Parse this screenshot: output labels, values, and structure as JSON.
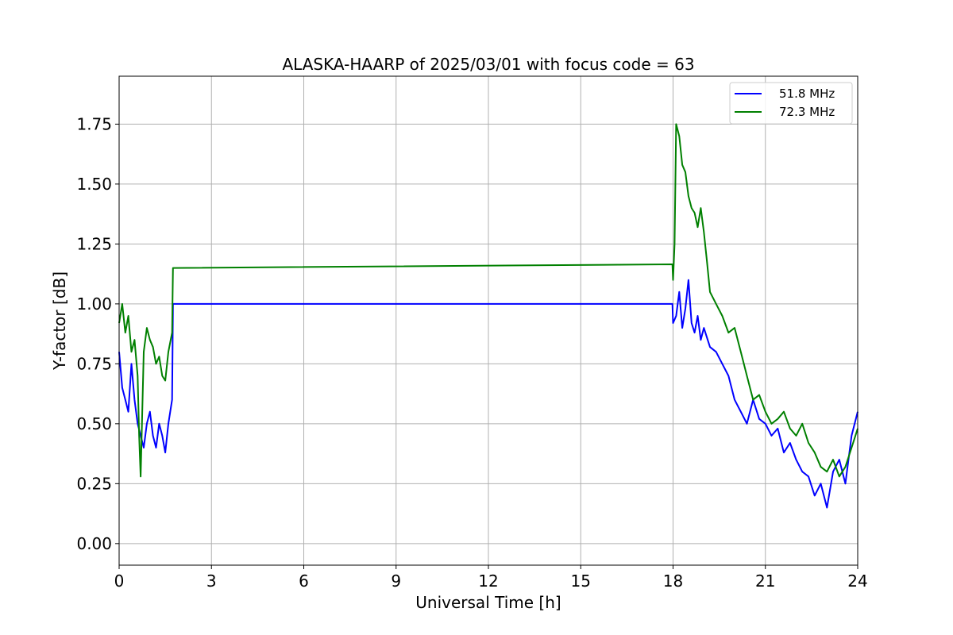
{
  "chart_data": {
    "type": "line",
    "title": "ALASKA-HAARP of 2025/03/01 with focus code = 63",
    "xlabel": "Universal Time [h]",
    "ylabel": "Y-factor [dB]",
    "xlim": [
      0,
      24
    ],
    "ylim": [
      -0.09,
      1.95
    ],
    "xticks": [
      0,
      3,
      6,
      9,
      12,
      15,
      18,
      21,
      24
    ],
    "xtick_labels": [
      "0",
      "3",
      "6",
      "9",
      "12",
      "15",
      "18",
      "21",
      "24"
    ],
    "yticks": [
      0,
      0.25,
      0.5,
      0.75,
      1.0,
      1.25,
      1.5,
      1.75
    ],
    "ytick_labels": [
      "0.00",
      "0.25",
      "0.50",
      "0.75",
      "1.00",
      "1.25",
      "1.50",
      "1.75"
    ],
    "grid": true,
    "legend_position": "top-right",
    "series": [
      {
        "name": "51.8 MHz",
        "color": "#0000ff",
        "x": [
          0.0,
          0.1,
          0.2,
          0.3,
          0.4,
          0.5,
          0.6,
          0.7,
          0.8,
          0.9,
          1.0,
          1.1,
          1.2,
          1.3,
          1.4,
          1.5,
          1.6,
          1.72,
          1.75,
          17.98,
          18.0,
          18.1,
          18.2,
          18.3,
          18.4,
          18.5,
          18.6,
          18.7,
          18.8,
          18.9,
          19.0,
          19.2,
          19.4,
          19.6,
          19.8,
          20.0,
          20.2,
          20.4,
          20.6,
          20.8,
          21.0,
          21.2,
          21.4,
          21.6,
          21.8,
          22.0,
          22.2,
          22.4,
          22.6,
          22.8,
          23.0,
          23.2,
          23.4,
          23.6,
          23.8,
          24.0
        ],
        "y": [
          0.8,
          0.65,
          0.6,
          0.55,
          0.75,
          0.6,
          0.5,
          0.45,
          0.4,
          0.5,
          0.55,
          0.45,
          0.4,
          0.5,
          0.45,
          0.38,
          0.5,
          0.6,
          1.0,
          1.0,
          0.92,
          0.95,
          1.05,
          0.9,
          0.98,
          1.1,
          0.92,
          0.88,
          0.95,
          0.85,
          0.9,
          0.82,
          0.8,
          0.75,
          0.7,
          0.6,
          0.55,
          0.5,
          0.6,
          0.52,
          0.5,
          0.45,
          0.48,
          0.38,
          0.42,
          0.35,
          0.3,
          0.28,
          0.2,
          0.25,
          0.15,
          0.3,
          0.35,
          0.25,
          0.45,
          0.55
        ]
      },
      {
        "name": "72.3 MHz",
        "color": "#008000",
        "x": [
          0.0,
          0.1,
          0.2,
          0.3,
          0.4,
          0.5,
          0.6,
          0.65,
          0.7,
          0.8,
          0.9,
          1.0,
          1.1,
          1.2,
          1.3,
          1.4,
          1.5,
          1.6,
          1.72,
          1.75,
          17.98,
          18.0,
          18.05,
          18.1,
          18.2,
          18.3,
          18.4,
          18.5,
          18.6,
          18.7,
          18.8,
          18.9,
          19.0,
          19.1,
          19.2,
          19.4,
          19.6,
          19.8,
          20.0,
          20.2,
          20.4,
          20.6,
          20.8,
          21.0,
          21.2,
          21.4,
          21.6,
          21.8,
          22.0,
          22.2,
          22.4,
          22.6,
          22.8,
          23.0,
          23.2,
          23.4,
          23.6,
          23.8,
          24.0
        ],
        "y": [
          0.92,
          1.0,
          0.88,
          0.95,
          0.8,
          0.85,
          0.7,
          0.45,
          0.28,
          0.8,
          0.9,
          0.85,
          0.82,
          0.75,
          0.78,
          0.7,
          0.68,
          0.8,
          0.88,
          1.15,
          1.165,
          1.1,
          1.25,
          1.75,
          1.7,
          1.58,
          1.55,
          1.45,
          1.4,
          1.38,
          1.32,
          1.4,
          1.3,
          1.18,
          1.05,
          1.0,
          0.95,
          0.88,
          0.9,
          0.8,
          0.7,
          0.6,
          0.62,
          0.55,
          0.5,
          0.52,
          0.55,
          0.48,
          0.45,
          0.5,
          0.42,
          0.38,
          0.32,
          0.3,
          0.35,
          0.28,
          0.32,
          0.4,
          0.48
        ]
      }
    ]
  }
}
